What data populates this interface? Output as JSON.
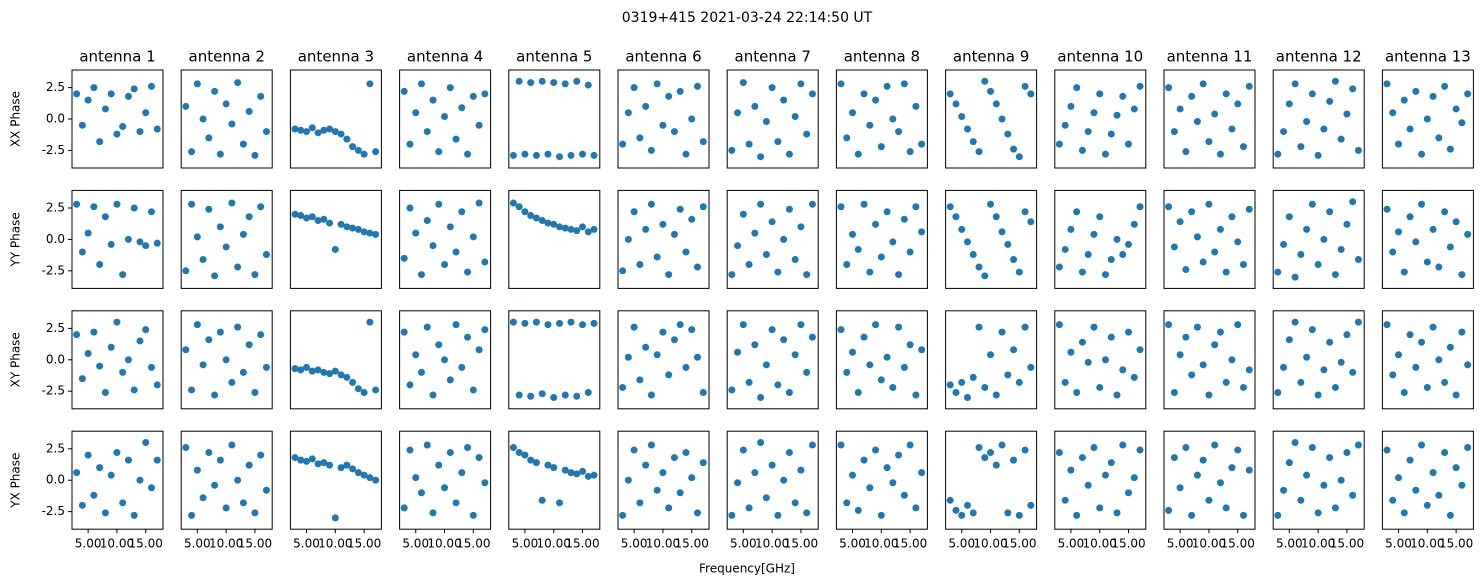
{
  "chart_data": {
    "type": "scatter",
    "title": "0319+415 2021-03-24 22:14:50 UT",
    "xlabel": "Frequency[GHz]",
    "columns": [
      "antenna 1",
      "antenna 2",
      "antenna 3",
      "antenna 4",
      "antenna 5",
      "antenna 6",
      "antenna 7",
      "antenna 8",
      "antenna 9",
      "antenna 10",
      "antenna 11",
      "antenna 12",
      "antenna 13"
    ],
    "rows": [
      "XX Phase",
      "YY Phase",
      "XY Phase",
      "YX Phase"
    ],
    "color": "#1f77b4",
    "xlim": [
      2.2,
      18.0
    ],
    "ylim": [
      -3.9,
      3.9
    ],
    "xticks": [
      {
        "value": 5,
        "label": "5.00"
      },
      {
        "value": 10,
        "label": "10.00"
      },
      {
        "value": 15,
        "label": "15.00"
      }
    ],
    "yticks": [
      -2.5,
      {
        "value": 0,
        "label": "0.0"
      },
      2.5
    ],
    "x": [
      3,
      4,
      5,
      6,
      7,
      8,
      9,
      10,
      11,
      12,
      13,
      14,
      15,
      16,
      17
    ],
    "panels": [
      [
        [
          2.0,
          -0.5,
          1.5,
          2.5,
          -1.8,
          0.8,
          2.0,
          -1.2,
          -0.6,
          1.8,
          2.4,
          -1.0,
          0.5,
          2.6,
          -0.8
        ],
        [
          1.0,
          -2.6,
          2.8,
          0.0,
          -1.5,
          2.2,
          -2.8,
          1.2,
          -0.4,
          2.9,
          -2.0,
          0.6,
          -2.9,
          1.8,
          -1.0
        ],
        [
          -0.8,
          -0.9,
          -1.0,
          -0.7,
          -1.1,
          -0.9,
          -0.8,
          -1.0,
          -1.2,
          -1.6,
          -2.2,
          -2.5,
          -2.8,
          2.8,
          -2.6
        ],
        [
          2.2,
          -2.0,
          0.5,
          2.8,
          -1.0,
          1.5,
          -2.6,
          0.2,
          2.5,
          -1.6,
          0.9,
          -2.8,
          1.8,
          -0.5,
          2.0
        ],
        [
          -2.9,
          3.0,
          -2.8,
          2.9,
          -2.9,
          3.0,
          -2.8,
          2.9,
          -3.0,
          2.8,
          -2.9,
          3.0,
          -2.8,
          2.7,
          -2.9
        ],
        [
          -2.0,
          0.5,
          2.5,
          -1.5,
          1.0,
          -2.5,
          2.8,
          -0.5,
          1.8,
          -1.0,
          2.2,
          -2.8,
          0.0,
          2.6,
          -1.8
        ],
        [
          -2.5,
          0.5,
          2.9,
          -2.0,
          1.0,
          -3.0,
          -0.2,
          2.5,
          -1.8,
          1.5,
          -2.8,
          0.2,
          2.8,
          -1.2,
          2.0
        ],
        [
          2.8,
          -1.5,
          0.5,
          -2.8,
          2.0,
          -0.5,
          1.5,
          -2.2,
          2.6,
          0.0,
          -1.0,
          2.8,
          -2.6,
          1.0,
          -2.0
        ],
        [
          2.0,
          1.2,
          0.2,
          -0.8,
          -1.8,
          -2.6,
          3.0,
          2.2,
          1.2,
          0.0,
          -1.2,
          -2.4,
          -3.0,
          2.6,
          2.0
        ],
        [
          -2.0,
          -0.5,
          1.0,
          2.5,
          -2.5,
          -1.0,
          0.5,
          2.0,
          -2.8,
          -1.2,
          0.3,
          1.8,
          -2.0,
          0.8,
          2.6
        ],
        [
          2.5,
          -1.0,
          0.8,
          -2.6,
          1.8,
          -0.2,
          2.8,
          -1.8,
          0.4,
          -2.8,
          2.0,
          -0.8,
          1.2,
          -2.2,
          2.6
        ],
        [
          -2.8,
          -1.0,
          1.2,
          2.8,
          -2.2,
          -0.2,
          2.0,
          -2.9,
          -0.8,
          1.4,
          3.0,
          -1.6,
          0.4,
          2.4,
          -2.5
        ],
        [
          2.8,
          0.5,
          -2.0,
          1.5,
          -0.8,
          2.2,
          -2.8,
          0.0,
          1.8,
          -1.5,
          2.6,
          -2.4,
          0.8,
          -0.3,
          2.0
        ]
      ],
      [
        [
          2.8,
          -1.0,
          0.5,
          2.6,
          -2.0,
          1.8,
          -0.4,
          2.8,
          -2.8,
          0.0,
          2.5,
          -0.2,
          -0.5,
          2.2,
          -0.3
        ],
        [
          -2.5,
          2.8,
          0.2,
          -1.6,
          2.4,
          -2.9,
          1.0,
          -0.6,
          2.9,
          -2.2,
          0.4,
          1.8,
          -2.8,
          2.6,
          -1.2
        ],
        [
          2.0,
          1.9,
          1.7,
          1.8,
          1.5,
          1.6,
          1.3,
          -0.8,
          1.2,
          1.0,
          0.9,
          0.8,
          0.6,
          0.5,
          0.4
        ],
        [
          -1.5,
          2.5,
          0.5,
          -2.8,
          1.5,
          -0.5,
          2.8,
          -2.0,
          1.0,
          -1.0,
          2.2,
          -2.6,
          0.2,
          2.9,
          -1.8
        ],
        [
          2.9,
          2.6,
          2.2,
          1.9,
          1.7,
          1.5,
          1.3,
          1.2,
          1.0,
          0.9,
          0.8,
          0.7,
          1.0,
          0.6,
          0.8
        ],
        [
          -2.5,
          0.0,
          2.2,
          -2.0,
          0.8,
          2.8,
          -1.4,
          1.2,
          -2.8,
          0.4,
          2.4,
          -1.0,
          1.6,
          -2.2,
          2.6
        ],
        [
          -2.8,
          -0.5,
          2.0,
          -2.0,
          0.5,
          2.8,
          -1.2,
          1.4,
          -2.6,
          0.0,
          2.4,
          -1.6,
          1.0,
          -2.8,
          2.8
        ],
        [
          2.6,
          -2.0,
          0.4,
          -0.8,
          2.8,
          -2.6,
          1.2,
          -1.4,
          2.2,
          -0.2,
          -2.8,
          1.6,
          -1.0,
          2.6,
          0.6
        ],
        [
          2.6,
          1.8,
          0.8,
          -0.2,
          -1.2,
          -2.2,
          -2.9,
          2.8,
          1.8,
          0.6,
          -0.4,
          -1.6,
          -2.6,
          2.2,
          1.4
        ],
        [
          -2.2,
          -0.8,
          0.8,
          2.2,
          -2.6,
          -1.2,
          0.4,
          1.8,
          -2.8,
          -1.6,
          0.0,
          -1.2,
          -0.4,
          1.2,
          2.6
        ],
        [
          2.6,
          -0.6,
          1.4,
          -2.4,
          2.2,
          0.2,
          -1.8,
          2.8,
          -1.0,
          0.8,
          -2.6,
          1.8,
          -0.2,
          -2.0,
          2.4
        ],
        [
          -2.6,
          -0.4,
          1.8,
          -3.0,
          -1.2,
          0.8,
          2.8,
          -2.0,
          0.0,
          2.2,
          -2.8,
          -0.8,
          1.2,
          3.0,
          -1.6
        ],
        [
          2.4,
          -1.0,
          0.6,
          -2.6,
          1.8,
          -0.2,
          2.8,
          -1.8,
          0.8,
          -2.2,
          2.2,
          -0.6,
          1.4,
          -2.8,
          0.4
        ]
      ],
      [
        [
          2.0,
          -1.5,
          0.5,
          2.2,
          -0.5,
          -2.6,
          1.0,
          3.0,
          -1.0,
          0.0,
          -2.4,
          1.5,
          2.4,
          -0.6,
          -2.0
        ],
        [
          0.8,
          -2.4,
          2.8,
          -0.4,
          1.6,
          -2.8,
          2.2,
          0.0,
          -1.8,
          2.6,
          -1.0,
          1.2,
          -2.6,
          2.0,
          -0.6
        ],
        [
          -0.7,
          -0.8,
          -0.6,
          -0.9,
          -0.8,
          -1.0,
          -1.1,
          -0.9,
          -1.2,
          -1.4,
          -1.8,
          -2.3,
          -2.6,
          3.0,
          -2.4
        ],
        [
          2.2,
          -2.0,
          0.4,
          -1.0,
          2.6,
          -2.8,
          1.2,
          0.0,
          -1.6,
          2.8,
          -0.6,
          1.8,
          -2.4,
          0.8,
          2.4
        ],
        [
          3.0,
          -2.8,
          2.9,
          -2.9,
          3.0,
          -2.7,
          2.8,
          -3.0,
          2.9,
          -2.8,
          3.0,
          -2.9,
          2.8,
          -2.6,
          2.9
        ],
        [
          -2.2,
          0.2,
          2.6,
          -1.6,
          1.0,
          -2.8,
          0.4,
          2.2,
          -1.2,
          1.6,
          2.8,
          -0.6,
          2.4,
          0.2,
          -2.6
        ],
        [
          -2.4,
          0.6,
          2.8,
          -1.8,
          1.2,
          -3.0,
          -0.4,
          2.4,
          -2.0,
          1.6,
          -2.6,
          0.4,
          2.8,
          -1.0,
          1.8
        ],
        [
          2.4,
          -1.0,
          0.6,
          -2.6,
          1.8,
          -0.4,
          2.8,
          -1.6,
          0.2,
          -2.2,
          2.6,
          -0.6,
          1.2,
          -2.8,
          0.8
        ],
        [
          -2.0,
          -2.6,
          -1.8,
          -3.0,
          -1.4,
          2.6,
          -2.2,
          0.4,
          -2.8,
          2.2,
          -1.2,
          0.8,
          -1.8,
          2.6,
          -0.6
        ],
        [
          2.8,
          -1.8,
          0.6,
          -2.6,
          1.4,
          -0.2,
          2.6,
          -2.2,
          0.0,
          1.8,
          -2.8,
          -0.8,
          2.2,
          -1.4,
          0.8
        ],
        [
          2.8,
          -2.6,
          0.4,
          1.8,
          -1.2,
          2.6,
          -0.4,
          -2.8,
          1.2,
          2.2,
          -1.8,
          0.0,
          2.8,
          -2.2,
          -0.8
        ],
        [
          -2.6,
          -0.6,
          1.6,
          3.0,
          -1.8,
          0.2,
          2.4,
          -2.8,
          -0.8,
          1.4,
          -2.2,
          -0.2,
          2.0,
          -1.0,
          3.0
        ],
        [
          2.8,
          -1.2,
          0.4,
          -2.6,
          2.0,
          -0.6,
          1.4,
          -2.2,
          2.6,
          0.0,
          -1.8,
          1.0,
          -2.8,
          2.2,
          -0.4
        ]
      ],
      [
        [
          0.6,
          -2.0,
          2.0,
          -1.2,
          1.0,
          -2.6,
          0.4,
          2.2,
          -1.8,
          1.6,
          -2.8,
          0.0,
          3.0,
          -0.6,
          1.6
        ],
        [
          2.6,
          -2.8,
          0.8,
          -1.4,
          2.2,
          -0.4,
          1.6,
          -2.2,
          2.8,
          0.0,
          -1.8,
          1.2,
          -2.6,
          2.0,
          -0.8
        ],
        [
          1.8,
          1.6,
          1.5,
          1.7,
          1.3,
          1.4,
          1.2,
          -3.0,
          1.0,
          1.2,
          0.9,
          0.6,
          0.4,
          0.2,
          0.0
        ],
        [
          -2.2,
          2.4,
          0.2,
          -1.0,
          2.8,
          -2.6,
          1.2,
          -0.6,
          2.2,
          -1.8,
          0.6,
          2.6,
          -2.8,
          1.8,
          -0.2
        ],
        [
          2.6,
          2.2,
          2.0,
          1.6,
          1.4,
          -1.6,
          1.2,
          1.0,
          -1.8,
          0.8,
          0.6,
          0.5,
          0.7,
          0.3,
          0.4
        ],
        [
          -2.8,
          0.0,
          2.4,
          -1.8,
          1.2,
          2.8,
          -0.8,
          0.6,
          -2.2,
          1.8,
          -1.0,
          2.2,
          0.2,
          -2.6,
          1.4
        ],
        [
          -2.8,
          -0.2,
          2.4,
          -2.2,
          0.6,
          3.0,
          -1.4,
          1.2,
          -2.8,
          0.0,
          2.2,
          -1.8,
          0.8,
          -2.6,
          2.8
        ],
        [
          2.8,
          -1.8,
          0.4,
          -2.4,
          1.6,
          -0.6,
          2.4,
          -2.8,
          1.0,
          -0.2,
          2.0,
          -1.2,
          2.8,
          -2.2,
          0.6
        ],
        [
          -1.6,
          -2.4,
          -2.8,
          -2.0,
          -2.6,
          2.6,
          1.8,
          2.2,
          1.2,
          2.8,
          -2.6,
          1.6,
          -2.8,
          2.4,
          -2.0
        ],
        [
          2.2,
          -1.6,
          0.8,
          -2.8,
          1.8,
          -0.4,
          2.6,
          -2.2,
          0.4,
          1.4,
          -2.6,
          2.8,
          -1.0,
          0.2,
          2.4
        ],
        [
          -2.4,
          1.8,
          -0.6,
          2.6,
          -2.8,
          0.4,
          1.6,
          -1.6,
          2.8,
          -0.2,
          -2.2,
          1.0,
          2.4,
          -2.8,
          0.8
        ],
        [
          -2.8,
          -0.8,
          1.4,
          3.0,
          -1.6,
          0.4,
          2.6,
          -2.6,
          -0.4,
          1.8,
          -2.2,
          0.0,
          2.2,
          -1.2,
          2.8
        ],
        [
          2.4,
          -1.6,
          0.2,
          -2.6,
          1.6,
          -0.8,
          2.8,
          -2.0,
          0.6,
          -1.2,
          2.2,
          -2.8,
          1.0,
          -0.4,
          2.6
        ]
      ]
    ]
  }
}
